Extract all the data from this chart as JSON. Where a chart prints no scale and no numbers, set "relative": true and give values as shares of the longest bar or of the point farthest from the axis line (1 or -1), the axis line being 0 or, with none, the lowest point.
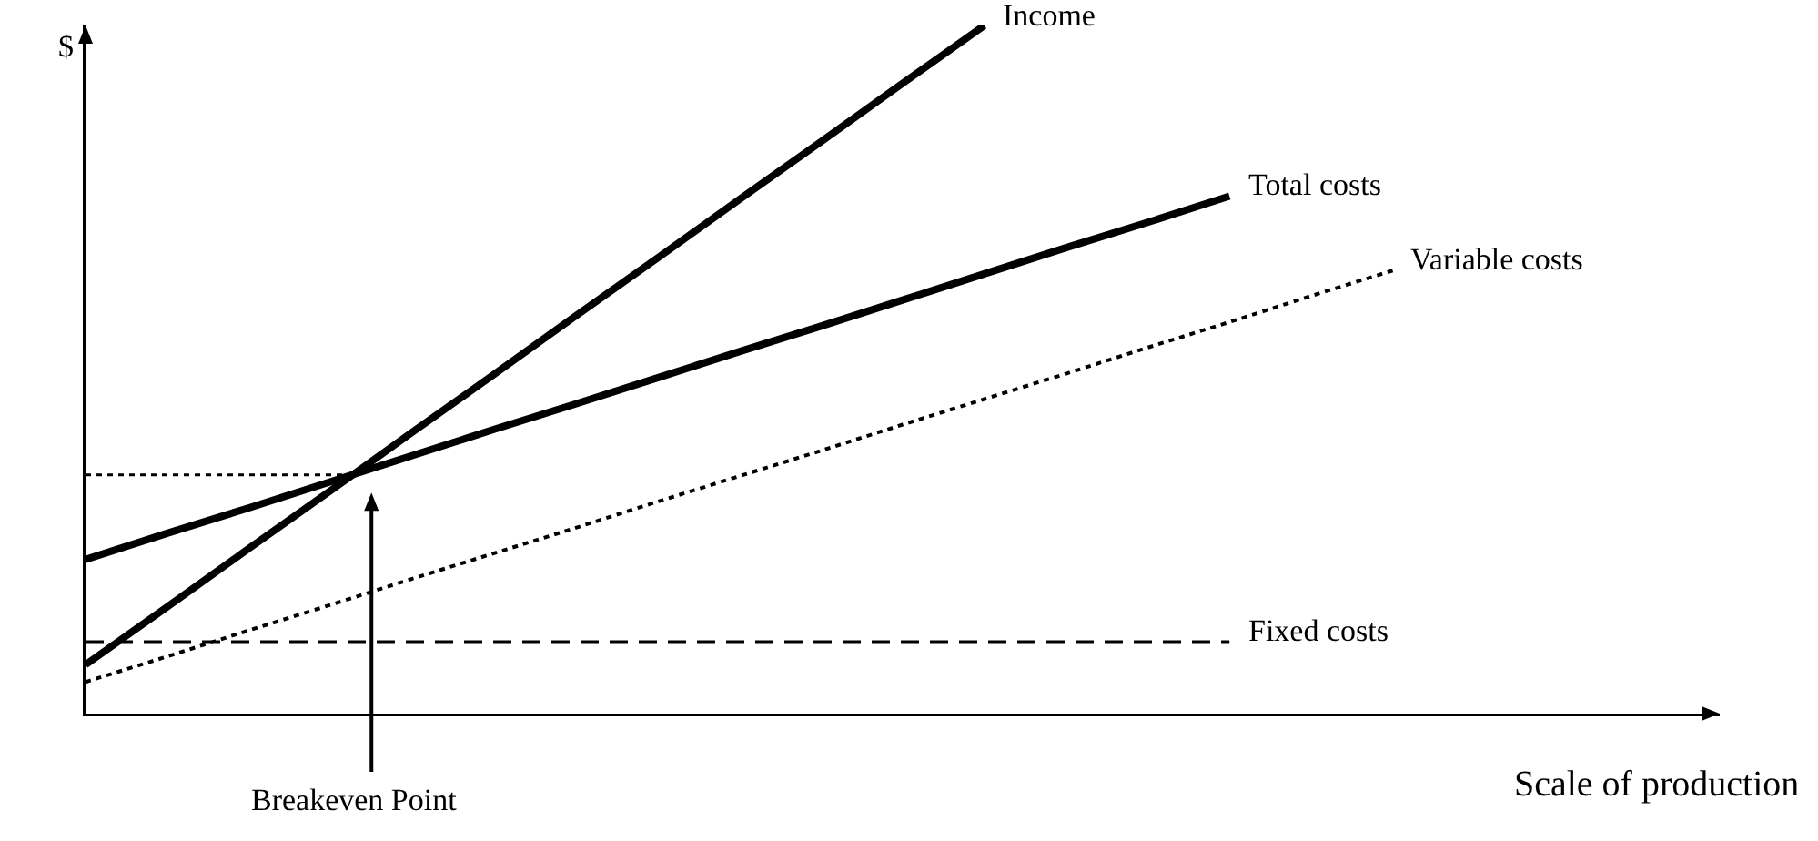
{
  "chart_data": {
    "type": "line",
    "relative": true,
    "xlabel": "Scale of production",
    "ylabel": "$",
    "grid": false,
    "legend": false,
    "marker": "none",
    "categories": [
      null,
      null,
      null,
      null,
      null,
      null,
      null,
      null,
      null,
      null,
      null,
      null,
      null,
      null,
      null,
      null,
      null,
      null,
      null,
      null,
      null
    ],
    "series": [
      {
        "name": "Income",
        "color": "#000000",
        "line_style": "solid",
        "values": [
          0.071,
          0.155,
          0.24,
          0.324,
          0.409,
          0.493,
          0.578,
          0.662,
          0.747,
          0.831,
          0.916,
          1.0,
          null,
          null,
          null,
          null,
          null,
          null,
          null,
          null,
          null
        ]
      },
      {
        "name": "Total costs",
        "color": "#000000",
        "line_style": "solid",
        "values": [
          0.224,
          0.262,
          0.299,
          0.337,
          0.375,
          0.413,
          0.45,
          0.488,
          0.526,
          0.563,
          0.601,
          0.639,
          0.677,
          0.714,
          0.752,
          null,
          null,
          null,
          null,
          null,
          null
        ]
      },
      {
        "name": "Variable costs",
        "color": "#000000",
        "line_style": "dotted",
        "values": [
          0.046,
          0.083,
          0.121,
          0.158,
          0.196,
          0.233,
          0.27,
          0.308,
          0.345,
          0.382,
          0.42,
          0.457,
          0.494,
          0.532,
          0.569,
          0.607,
          0.644,
          null,
          null,
          null,
          null
        ]
      },
      {
        "name": "Fixed costs",
        "color": "#000000",
        "line_style": "dashed",
        "values": [
          0.104,
          0.104,
          0.104,
          0.104,
          0.104,
          0.104,
          0.104,
          0.104,
          0.104,
          0.104,
          0.104,
          0.104,
          0.104,
          0.104,
          0.104,
          null,
          null,
          null,
          null,
          null,
          null
        ]
      }
    ],
    "ref_lines": [
      {
        "axis": "y",
        "value": 0.347,
        "line_style": "dotted",
        "color": "#000000"
      }
    ],
    "annotations": [
      "Breakeven Point"
    ]
  }
}
